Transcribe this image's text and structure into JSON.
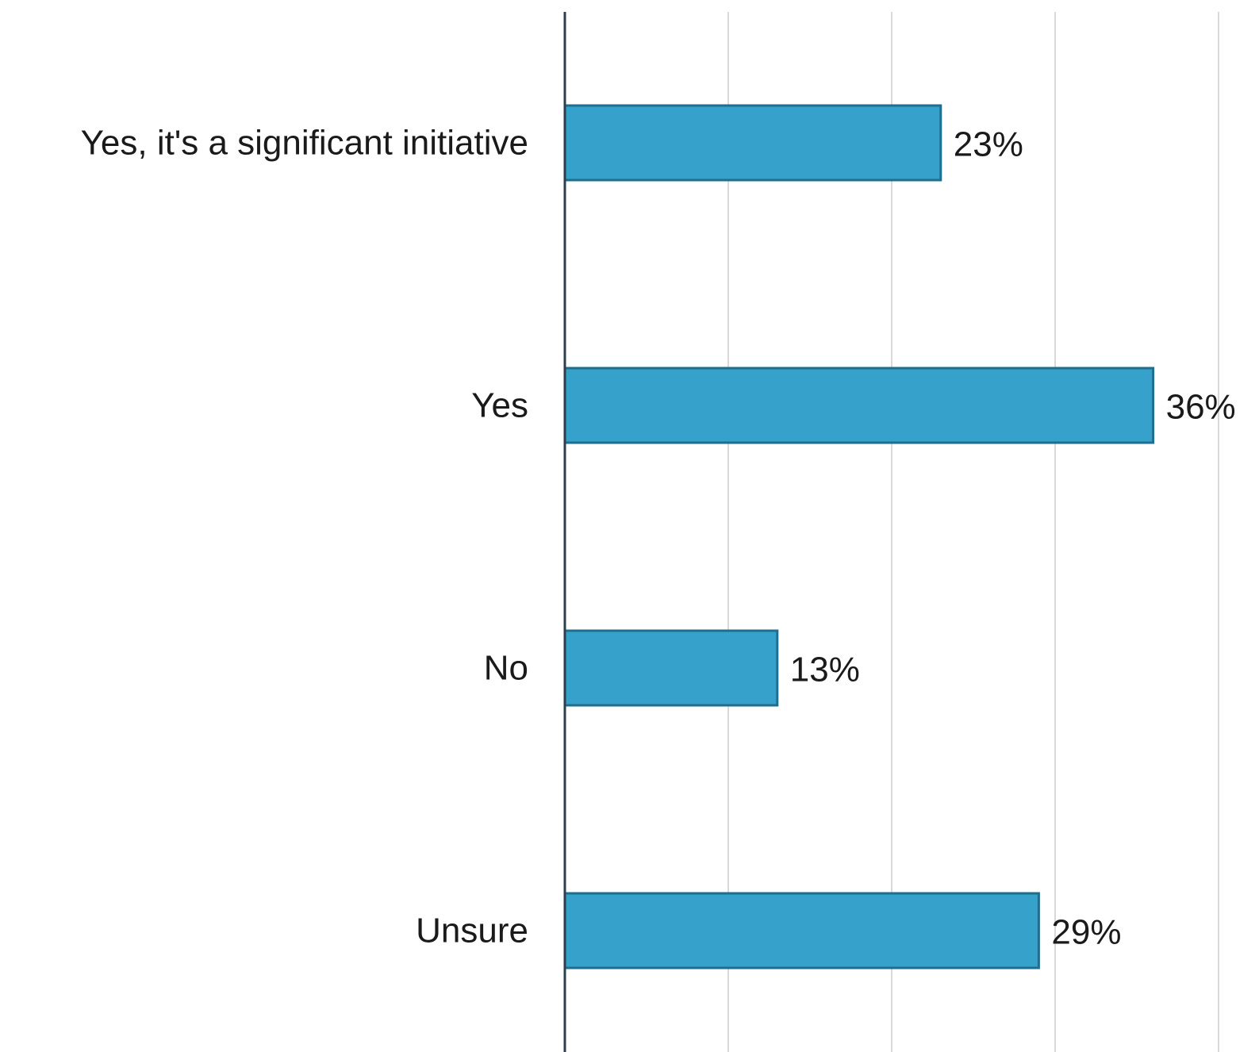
{
  "chart_data": {
    "type": "bar",
    "orientation": "horizontal",
    "title": "",
    "xlabel": "",
    "ylabel": "",
    "categories": [
      "Yes, it's a significant initiative",
      "Yes",
      "No",
      "Unsure"
    ],
    "values": [
      23,
      36,
      13,
      29
    ],
    "value_labels": [
      "23%",
      "36%",
      "13%",
      "29%"
    ],
    "xlim": [
      0,
      40
    ],
    "grid": "vertical",
    "legend": "none"
  },
  "colors": {
    "bar_fill": "#36a2cb",
    "bar_stroke": "#1f6e8f",
    "axis": "#2d3e50",
    "grid": "#d9d9d9",
    "text": "#1a1a1a"
  }
}
